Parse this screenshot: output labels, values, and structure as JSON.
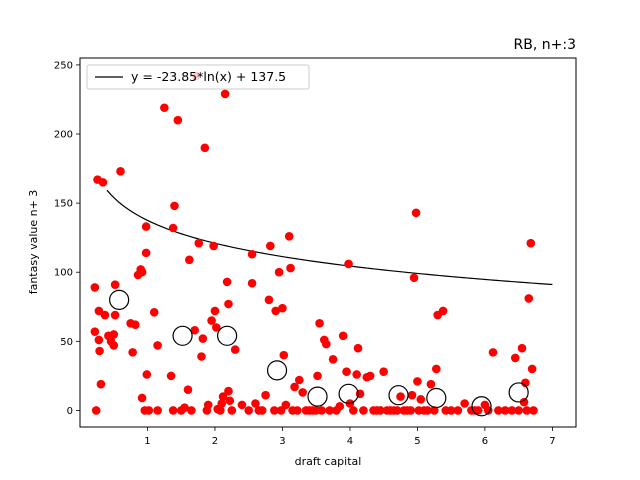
{
  "chart_data": {
    "type": "scatter",
    "title": "RB, n+:3",
    "xlabel": "draft capital",
    "ylabel": "fantasy value n+ 3",
    "xlim": [
      0.0,
      7.35
    ],
    "ylim": [
      -12,
      255
    ],
    "xticks": [
      1,
      2,
      3,
      4,
      5,
      6,
      7
    ],
    "yticks": [
      0,
      50,
      100,
      150,
      200,
      250
    ],
    "grid": false,
    "legend_position": "top-left",
    "colors": {
      "points": "#ff0000",
      "fit_line": "#000000",
      "bin_markers": "#000000"
    },
    "series": [
      {
        "name": "",
        "marker": "filled-circle",
        "points": [
          [
            0.22,
            89
          ],
          [
            0.22,
            57
          ],
          [
            0.24,
            0
          ],
          [
            0.26,
            167
          ],
          [
            0.28,
            51
          ],
          [
            0.28,
            72
          ],
          [
            0.29,
            43
          ],
          [
            0.31,
            19
          ],
          [
            0.34,
            165
          ],
          [
            0.37,
            69
          ],
          [
            0.42,
            54
          ],
          [
            0.46,
            50
          ],
          [
            0.5,
            55
          ],
          [
            0.5,
            47
          ],
          [
            0.52,
            91
          ],
          [
            0.52,
            69
          ],
          [
            0.6,
            173
          ],
          [
            0.75,
            63
          ],
          [
            0.78,
            42
          ],
          [
            0.82,
            62
          ],
          [
            0.86,
            98
          ],
          [
            0.9,
            102
          ],
          [
            0.92,
            100
          ],
          [
            0.92,
            9
          ],
          [
            0.96,
            0
          ],
          [
            0.98,
            133
          ],
          [
            0.98,
            114
          ],
          [
            0.99,
            26
          ],
          [
            1.02,
            0
          ],
          [
            1.1,
            71
          ],
          [
            1.15,
            47
          ],
          [
            1.15,
            0
          ],
          [
            1.25,
            219
          ],
          [
            1.35,
            25
          ],
          [
            1.38,
            0
          ],
          [
            1.38,
            132
          ],
          [
            1.4,
            148
          ],
          [
            1.45,
            210
          ],
          [
            1.5,
            0
          ],
          [
            1.55,
            2
          ],
          [
            1.6,
            15
          ],
          [
            1.62,
            109
          ],
          [
            1.65,
            0
          ],
          [
            1.7,
            58
          ],
          [
            1.72,
            242
          ],
          [
            1.76,
            121
          ],
          [
            1.8,
            39
          ],
          [
            1.82,
            52
          ],
          [
            1.85,
            190
          ],
          [
            1.88,
            0
          ],
          [
            1.9,
            4
          ],
          [
            1.95,
            65
          ],
          [
            1.98,
            119
          ],
          [
            2.0,
            72
          ],
          [
            2.02,
            60
          ],
          [
            2.04,
            1
          ],
          [
            2.08,
            0
          ],
          [
            2.1,
            5
          ],
          [
            2.12,
            10
          ],
          [
            2.15,
            229
          ],
          [
            2.18,
            93
          ],
          [
            2.2,
            77
          ],
          [
            2.2,
            14
          ],
          [
            2.22,
            7
          ],
          [
            2.25,
            0
          ],
          [
            2.3,
            44
          ],
          [
            2.4,
            4
          ],
          [
            2.5,
            0
          ],
          [
            2.55,
            113
          ],
          [
            2.55,
            92
          ],
          [
            2.6,
            5
          ],
          [
            2.65,
            0
          ],
          [
            2.7,
            0
          ],
          [
            2.75,
            11
          ],
          [
            2.8,
            80
          ],
          [
            2.82,
            119
          ],
          [
            2.88,
            0
          ],
          [
            2.9,
            72
          ],
          [
            2.95,
            100
          ],
          [
            2.98,
            0
          ],
          [
            3.0,
            74
          ],
          [
            3.02,
            40
          ],
          [
            3.05,
            4
          ],
          [
            3.1,
            126
          ],
          [
            3.12,
            103
          ],
          [
            3.15,
            0
          ],
          [
            3.18,
            17
          ],
          [
            3.22,
            0
          ],
          [
            3.25,
            22
          ],
          [
            3.3,
            13
          ],
          [
            3.35,
            0
          ],
          [
            3.4,
            0
          ],
          [
            3.45,
            0
          ],
          [
            3.5,
            0
          ],
          [
            3.52,
            25
          ],
          [
            3.55,
            63
          ],
          [
            3.58,
            0
          ],
          [
            3.62,
            51
          ],
          [
            3.65,
            48
          ],
          [
            3.7,
            0
          ],
          [
            3.75,
            37
          ],
          [
            3.8,
            0
          ],
          [
            3.85,
            3
          ],
          [
            3.9,
            54
          ],
          [
            3.95,
            28
          ],
          [
            3.98,
            106
          ],
          [
            4.0,
            5
          ],
          [
            4.05,
            0
          ],
          [
            4.1,
            26
          ],
          [
            4.12,
            45
          ],
          [
            4.15,
            12
          ],
          [
            4.2,
            0
          ],
          [
            4.25,
            24
          ],
          [
            4.3,
            25
          ],
          [
            4.35,
            0
          ],
          [
            4.4,
            0
          ],
          [
            4.45,
            0
          ],
          [
            4.5,
            28
          ],
          [
            4.55,
            0
          ],
          [
            4.6,
            0
          ],
          [
            4.65,
            0
          ],
          [
            4.7,
            0
          ],
          [
            4.75,
            10
          ],
          [
            4.8,
            0
          ],
          [
            4.85,
            0
          ],
          [
            4.9,
            0
          ],
          [
            4.92,
            11
          ],
          [
            4.95,
            96
          ],
          [
            4.98,
            143
          ],
          [
            5.0,
            21
          ],
          [
            5.02,
            0
          ],
          [
            5.05,
            8
          ],
          [
            5.1,
            0
          ],
          [
            5.15,
            0
          ],
          [
            5.2,
            19
          ],
          [
            5.25,
            0
          ],
          [
            5.28,
            30
          ],
          [
            5.3,
            69
          ],
          [
            5.38,
            72
          ],
          [
            5.42,
            0
          ],
          [
            5.5,
            0
          ],
          [
            5.6,
            0
          ],
          [
            5.7,
            5
          ],
          [
            5.8,
            0
          ],
          [
            5.85,
            0
          ],
          [
            5.9,
            0
          ],
          [
            6.0,
            4
          ],
          [
            6.05,
            0
          ],
          [
            6.12,
            42
          ],
          [
            6.2,
            0
          ],
          [
            6.3,
            0
          ],
          [
            6.4,
            0
          ],
          [
            6.45,
            38
          ],
          [
            6.5,
            0
          ],
          [
            6.55,
            45
          ],
          [
            6.58,
            6
          ],
          [
            6.6,
            20
          ],
          [
            6.62,
            0
          ],
          [
            6.65,
            81
          ],
          [
            6.68,
            121
          ],
          [
            6.7,
            30
          ],
          [
            6.72,
            0
          ]
        ]
      },
      {
        "name": "",
        "marker": "open-circle",
        "points": [
          [
            0.58,
            80
          ],
          [
            1.52,
            54
          ],
          [
            2.18,
            54
          ],
          [
            2.92,
            29
          ],
          [
            3.52,
            10
          ],
          [
            3.98,
            12
          ],
          [
            4.72,
            11
          ],
          [
            5.28,
            9
          ],
          [
            5.95,
            3
          ],
          [
            6.5,
            13
          ]
        ]
      },
      {
        "name": "y = -23.85*ln(x) + 137.5",
        "type": "line",
        "fit": {
          "function": "a*ln(x)+b",
          "a": -23.85,
          "b": 137.5,
          "x_range": [
            0.4,
            7.0
          ]
        }
      }
    ]
  }
}
